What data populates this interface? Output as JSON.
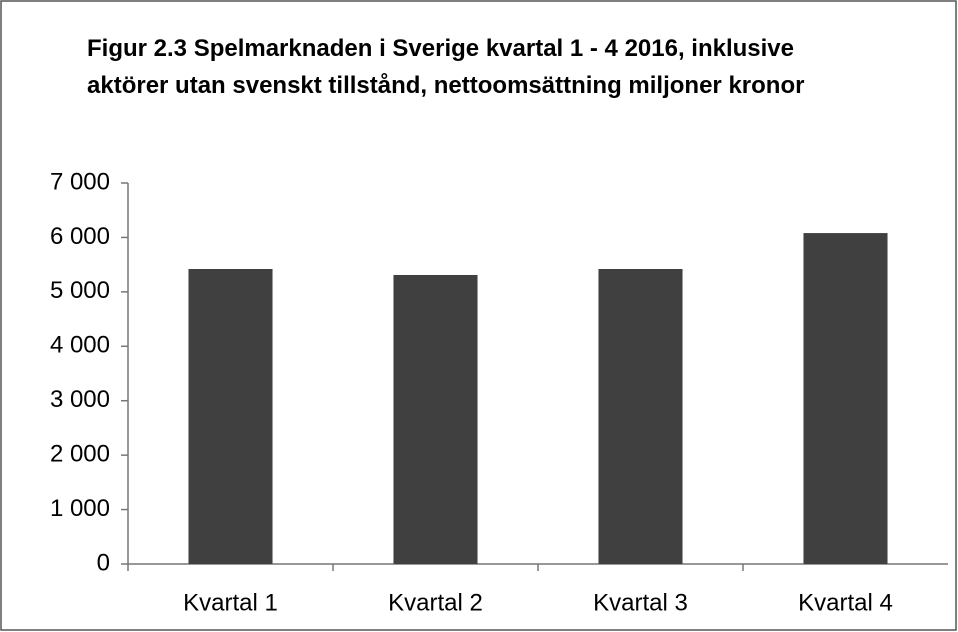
{
  "chart_data": {
    "type": "bar",
    "title": "Figur 2.3 Spelmarknaden i Sverige kvartal 1 - 4 2016, inklusive aktörer utan svenskt tillstånd, nettoomsättning miljoner kronor",
    "categories": [
      "Kvartal 1",
      "Kvartal 2",
      "Kvartal 3",
      "Kvartal 4"
    ],
    "values": [
      5420,
      5310,
      5420,
      6080
    ],
    "color": "#404040",
    "ylim": [
      0,
      7000
    ],
    "yticks": [
      0,
      {
        "value": 1000,
        "label": "1 000"
      },
      {
        "value": 2000,
        "label": "2 000"
      },
      {
        "value": 3000,
        "label": "3 000"
      },
      {
        "value": 4000,
        "label": "4 000"
      },
      {
        "value": 5000,
        "label": "5 000"
      },
      {
        "value": 6000,
        "label": "6 000"
      },
      {
        "value": 7000,
        "label": "7 000"
      }
    ],
    "grid": false
  }
}
